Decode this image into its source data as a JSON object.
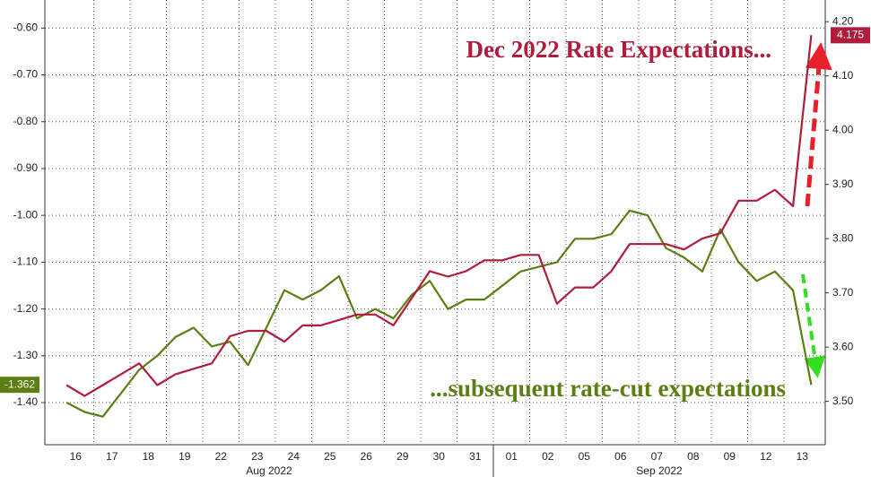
{
  "chart_data": {
    "type": "line",
    "categories": [
      "16",
      null,
      "17",
      null,
      "18",
      null,
      "19",
      null,
      "22",
      null,
      "23",
      null,
      "24",
      null,
      "25",
      null,
      "26",
      null,
      "29",
      null,
      "30",
      null,
      "31",
      null,
      "01",
      null,
      "02",
      null,
      "05",
      null,
      "06",
      null,
      "07",
      null,
      "08",
      null,
      "09",
      null,
      "12",
      null,
      "13",
      null
    ],
    "months": [
      "Aug 2022",
      "Sep 2022"
    ],
    "series": [
      {
        "color": "#5b7f12",
        "axis": "y",
        "last_label": "-1.362",
        "values": [
          -1.4,
          -1.42,
          -1.43,
          -1.38,
          -1.33,
          -1.3,
          -1.26,
          -1.24,
          -1.28,
          -1.27,
          -1.32,
          -1.24,
          -1.16,
          -1.18,
          -1.16,
          -1.13,
          -1.22,
          -1.2,
          -1.22,
          -1.17,
          -1.14,
          -1.2,
          -1.18,
          -1.18,
          -1.15,
          -1.12,
          -1.11,
          -1.1,
          -1.05,
          -1.05,
          -1.04,
          -0.99,
          -1.0,
          -1.07,
          -1.09,
          -1.12,
          -1.03,
          -1.1,
          -1.14,
          -1.12,
          -1.16,
          -1.362
        ]
      },
      {
        "color": "#b01c3c",
        "axis": "y2",
        "last_label": "4.175",
        "values": [
          3.53,
          3.51,
          3.53,
          3.55,
          3.57,
          3.53,
          3.55,
          3.56,
          3.57,
          3.62,
          3.63,
          3.63,
          3.61,
          3.64,
          3.64,
          3.65,
          3.66,
          3.66,
          3.64,
          3.69,
          3.74,
          3.73,
          3.74,
          3.76,
          3.76,
          3.77,
          3.77,
          3.68,
          3.71,
          3.71,
          3.74,
          3.79,
          3.79,
          3.79,
          3.78,
          3.8,
          3.81,
          3.87,
          3.87,
          3.89,
          3.86,
          4.175
        ]
      }
    ],
    "ylim": [
      -1.49,
      -0.54
    ],
    "yticks": [
      {
        "value": -0.6,
        "label": "-0.60"
      },
      {
        "value": -0.7,
        "label": "-0.70"
      },
      {
        "value": -0.8,
        "label": "-0.80"
      },
      {
        "value": -0.9,
        "label": "-0.90"
      },
      {
        "value": -1.0,
        "label": "-1.00"
      },
      {
        "value": -1.1,
        "label": "-1.10"
      },
      {
        "value": -1.2,
        "label": "-1.20"
      },
      {
        "value": -1.3,
        "label": "-1.30"
      },
      {
        "value": -1.4,
        "label": "-1.40"
      }
    ],
    "y2lim": [
      3.42,
      4.24
    ],
    "y2ticks": [
      {
        "value": 3.5,
        "label": "3.50"
      },
      {
        "value": 3.6,
        "label": "3.60"
      },
      {
        "value": 3.7,
        "label": "3.70"
      },
      {
        "value": 3.8,
        "label": "3.80"
      },
      {
        "value": 3.9,
        "label": "3.90"
      },
      {
        "value": 4.0,
        "label": "4.00"
      },
      {
        "value": 4.1,
        "label": "4.10"
      },
      {
        "value": 4.2,
        "label": "4.20"
      }
    ],
    "grid": true,
    "annotations": [
      "Dec 2022 Rate Expectations...",
      "...subsequent rate-cut expectations"
    ]
  }
}
